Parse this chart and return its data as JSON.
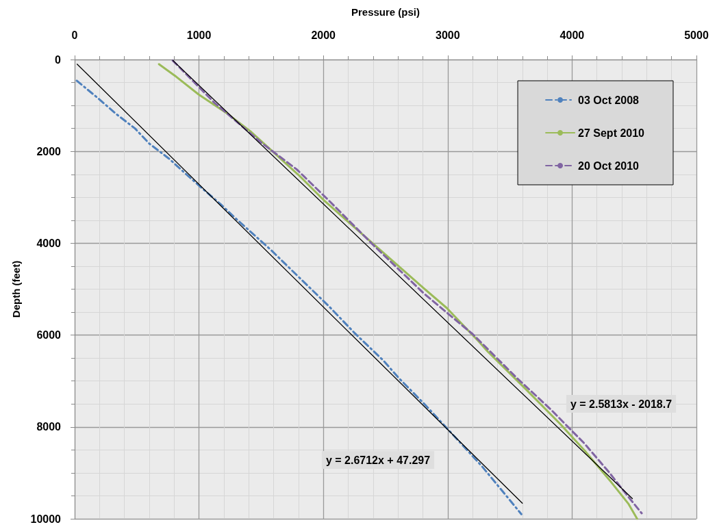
{
  "chart_data": {
    "type": "line",
    "xlabel": "Pressure (psi)",
    "ylabel": "Depth (feet)",
    "xlim": [
      0,
      5000
    ],
    "xticks": [
      0,
      1000,
      2000,
      3000,
      4000,
      5000
    ],
    "ylim": [
      10000,
      0
    ],
    "yticks": [
      0,
      2000,
      4000,
      6000,
      8000,
      10000
    ],
    "grid": true,
    "legend": "top right",
    "marker": "none",
    "series": [
      {
        "name": "03 Oct 2008",
        "color": "#4f81bd",
        "line_style": "dashdot",
        "x": [
          17,
          187,
          336,
          485,
          600,
          760,
          898,
          1036,
          1174,
          1311,
          1576,
          1796,
          2044,
          2253,
          2485,
          2601,
          2826,
          3052,
          3273,
          3477,
          3592
        ],
        "values": [
          460,
          840,
          1190,
          1500,
          1830,
          2160,
          2500,
          2830,
          3150,
          3500,
          4140,
          4720,
          5370,
          5960,
          6560,
          6920,
          7540,
          8200,
          8850,
          9520,
          9900
        ]
      },
      {
        "name": "27 Sept 2010",
        "color": "#9bbb59",
        "line_style": "solid",
        "x": [
          678,
          815,
          997,
          1234,
          1421,
          1603,
          1807,
          2006,
          2391,
          2799,
          2992,
          3256,
          3322,
          3636,
          3906,
          4099,
          4314,
          4452,
          4523
        ],
        "values": [
          100,
          370,
          760,
          1190,
          1580,
          2030,
          2530,
          3070,
          3990,
          4960,
          5410,
          6160,
          6360,
          7200,
          7940,
          8510,
          9200,
          9670,
          10000
        ]
      },
      {
        "name": "20 Oct 2010",
        "color": "#8064a2",
        "line_style": "dashed",
        "x": [
          788,
          1124,
          1510,
          1785,
          2044,
          2413,
          2815,
          3201,
          3554,
          3829,
          4099,
          4298,
          4452,
          4560
        ],
        "values": [
          20,
          940,
          1830,
          2390,
          3070,
          4070,
          5110,
          5980,
          6930,
          7620,
          8360,
          8990,
          9520,
          9880
        ]
      },
      {
        "type": "line",
        "color": "#000000",
        "line_style": "solid",
        "x": [
          20,
          3600
        ],
        "values": [
          100,
          9660
        ]
      },
      {
        "type": "line",
        "color": "#000000",
        "line_style": "solid",
        "x": [
          790,
          4485
        ],
        "values": [
          20,
          9560
        ]
      }
    ],
    "annotations": [
      "y = 2.6712x + 47.297",
      "y = 2.5813x - 2018.7"
    ]
  }
}
